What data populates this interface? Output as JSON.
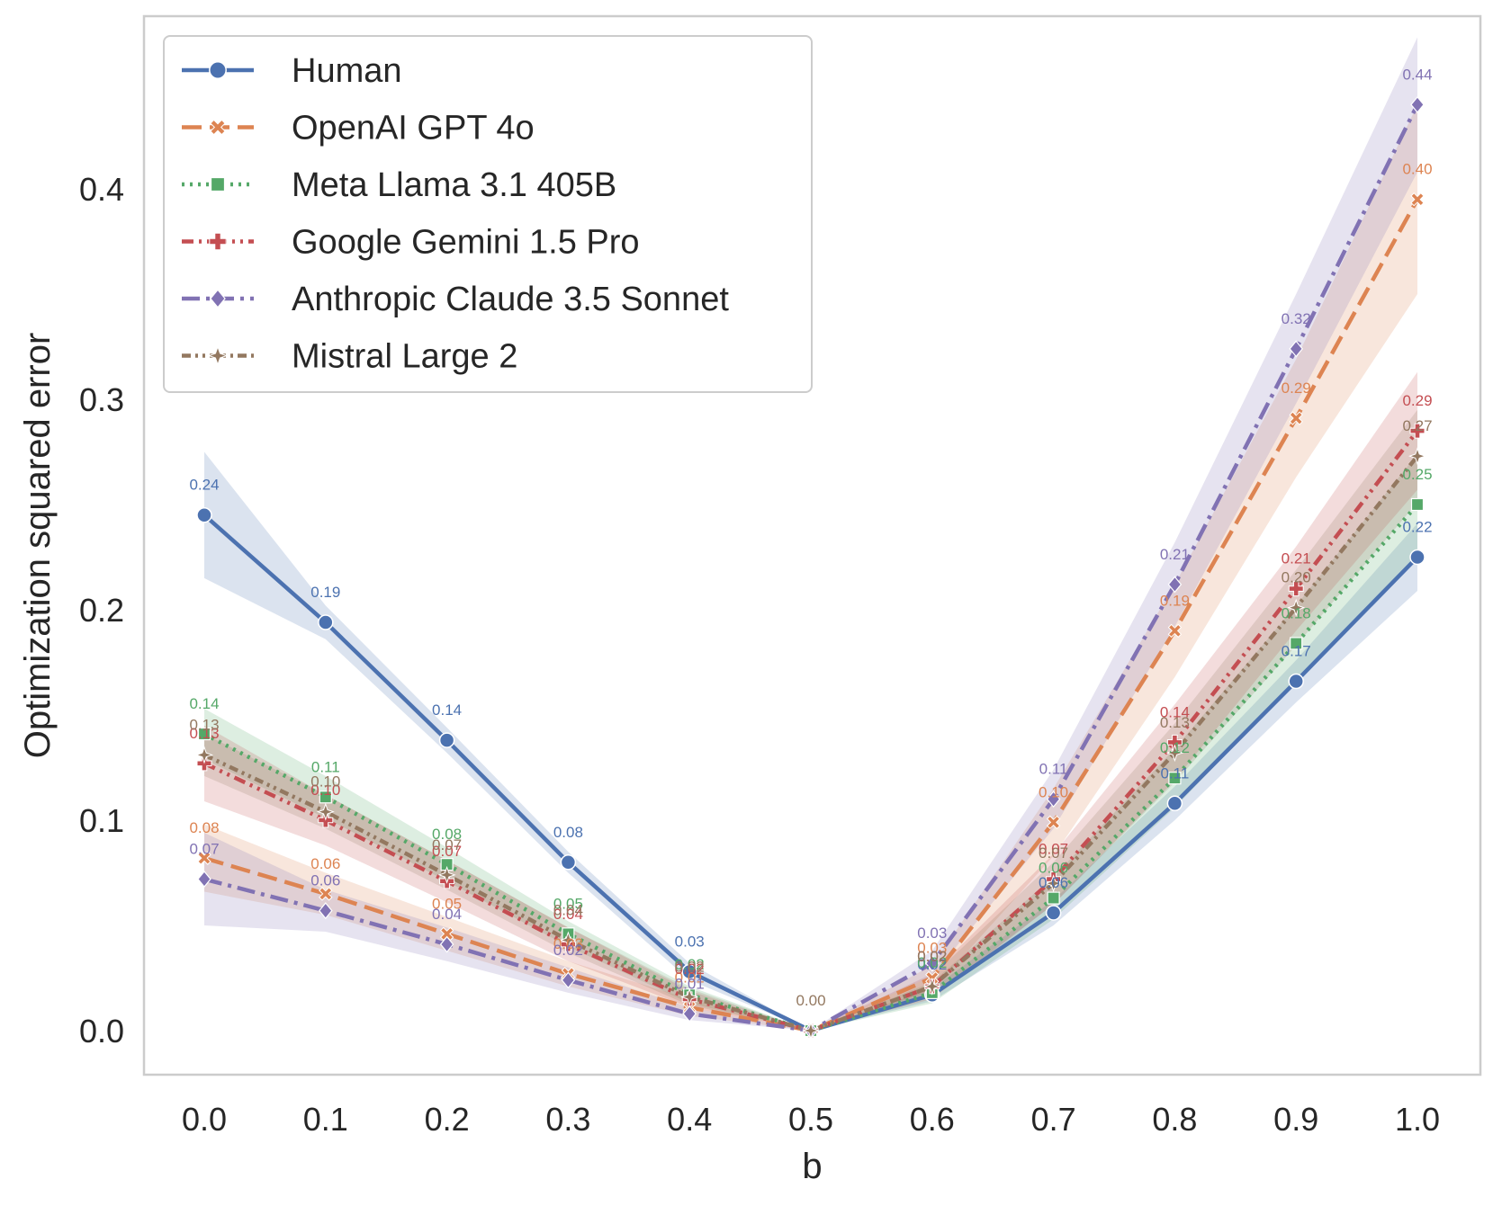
{
  "chart_data": {
    "type": "line",
    "title": "",
    "xlabel": "b",
    "ylabel": "Optimization squared error",
    "x": [
      0.0,
      0.1,
      0.2,
      0.3,
      0.4,
      0.5,
      0.6,
      0.7,
      0.8,
      0.9,
      1.0
    ],
    "x_tick_labels": [
      "0.0",
      "0.1",
      "0.2",
      "0.3",
      "0.4",
      "0.5",
      "0.6",
      "0.7",
      "0.8",
      "0.9",
      "1.0"
    ],
    "y_ticks": [
      0.0,
      0.1,
      0.2,
      0.3,
      0.4
    ],
    "y_tick_labels": [
      "0.0",
      "0.1",
      "0.2",
      "0.3",
      "0.4"
    ],
    "ylim": [
      -0.022,
      0.48
    ],
    "xlim": [
      -0.05,
      1.05
    ],
    "grid": false,
    "legend_position": "top-left",
    "series": [
      {
        "name": "Human",
        "color": "#4c72b0",
        "dash": "solid",
        "marker": "circle",
        "values": [
          0.245,
          0.194,
          0.138,
          0.08,
          0.028,
          0.0,
          0.017,
          0.056,
          0.108,
          0.166,
          0.225
        ],
        "band": [
          0.03,
          0.008,
          0.006,
          0.005,
          0.004,
          0.0,
          0.003,
          0.006,
          0.008,
          0.01,
          0.016
        ],
        "labels": [
          "0.24",
          "0.19",
          "0.14",
          "0.08",
          "0.03",
          "",
          "0.02",
          "0.06",
          "0.11",
          "0.17",
          "0.22"
        ]
      },
      {
        "name": "OpenAI GPT 4o",
        "color": "#dd8452",
        "dash": "dashed",
        "marker": "x",
        "values": [
          0.082,
          0.065,
          0.046,
          0.027,
          0.011,
          0.0,
          0.025,
          0.099,
          0.19,
          0.291,
          0.395
        ],
        "band": [
          0.016,
          0.01,
          0.008,
          0.006,
          0.004,
          0.0,
          0.006,
          0.016,
          0.022,
          0.028,
          0.045
        ],
        "labels": [
          "0.08",
          "0.06",
          "0.05",
          "0.03",
          "0.01",
          "",
          "0.03",
          "0.10",
          "0.19",
          "0.29",
          "0.40"
        ]
      },
      {
        "name": "Meta Llama 3.1 405B",
        "color": "#55a868",
        "dash": "dotted",
        "marker": "square",
        "values": [
          0.141,
          0.111,
          0.079,
          0.046,
          0.017,
          0.0,
          0.018,
          0.063,
          0.12,
          0.184,
          0.25
        ],
        "band": [
          0.012,
          0.01,
          0.008,
          0.006,
          0.004,
          0.0,
          0.005,
          0.01,
          0.014,
          0.018,
          0.024
        ],
        "labels": [
          "0.14",
          "0.11",
          "0.08",
          "0.05",
          "0.02",
          "",
          "0.02",
          "0.06",
          "0.12",
          "0.18",
          "0.25"
        ]
      },
      {
        "name": "Google Gemini 1.5 Pro",
        "color": "#c44e52",
        "dash": "dashdotdot",
        "marker": "plus",
        "values": [
          0.127,
          0.1,
          0.071,
          0.041,
          0.015,
          0.0,
          0.021,
          0.072,
          0.137,
          0.21,
          0.285
        ],
        "band": [
          0.018,
          0.012,
          0.01,
          0.008,
          0.004,
          0.0,
          0.006,
          0.012,
          0.018,
          0.02,
          0.028
        ],
        "labels": [
          "0.13",
          "0.10",
          "0.07",
          "0.04",
          "0.02",
          "",
          "0.02",
          "0.07",
          "0.14",
          "0.21",
          "0.29"
        ]
      },
      {
        "name": "Anthropic Claude 3.5 Sonnet",
        "color": "#8172b3",
        "dash": "dashdot",
        "marker": "diamond",
        "values": [
          0.072,
          0.057,
          0.041,
          0.024,
          0.008,
          0.0,
          0.032,
          0.11,
          0.212,
          0.324,
          0.44
        ],
        "band": [
          0.022,
          0.01,
          0.008,
          0.006,
          0.003,
          0.0,
          0.006,
          0.014,
          0.02,
          0.026,
          0.032
        ],
        "labels": [
          "0.07",
          "0.06",
          "0.04",
          "0.02",
          "0.01",
          "",
          "0.03",
          "0.11",
          "0.21",
          "0.32",
          "0.44"
        ]
      },
      {
        "name": "Mistral Large 2",
        "color": "#937860",
        "dash": "dashdotdot-fine",
        "marker": "star",
        "values": [
          0.131,
          0.104,
          0.074,
          0.043,
          0.016,
          0.0,
          0.021,
          0.07,
          0.132,
          0.201,
          0.273
        ],
        "band": [
          0.01,
          0.008,
          0.007,
          0.006,
          0.004,
          0.0,
          0.005,
          0.01,
          0.014,
          0.018,
          0.022
        ],
        "labels": [
          "0.13",
          "0.10",
          "0.07",
          "0.04",
          "0.02",
          "0.00",
          "0.02",
          "0.07",
          "0.13",
          "0.20",
          "0.27"
        ]
      }
    ]
  }
}
